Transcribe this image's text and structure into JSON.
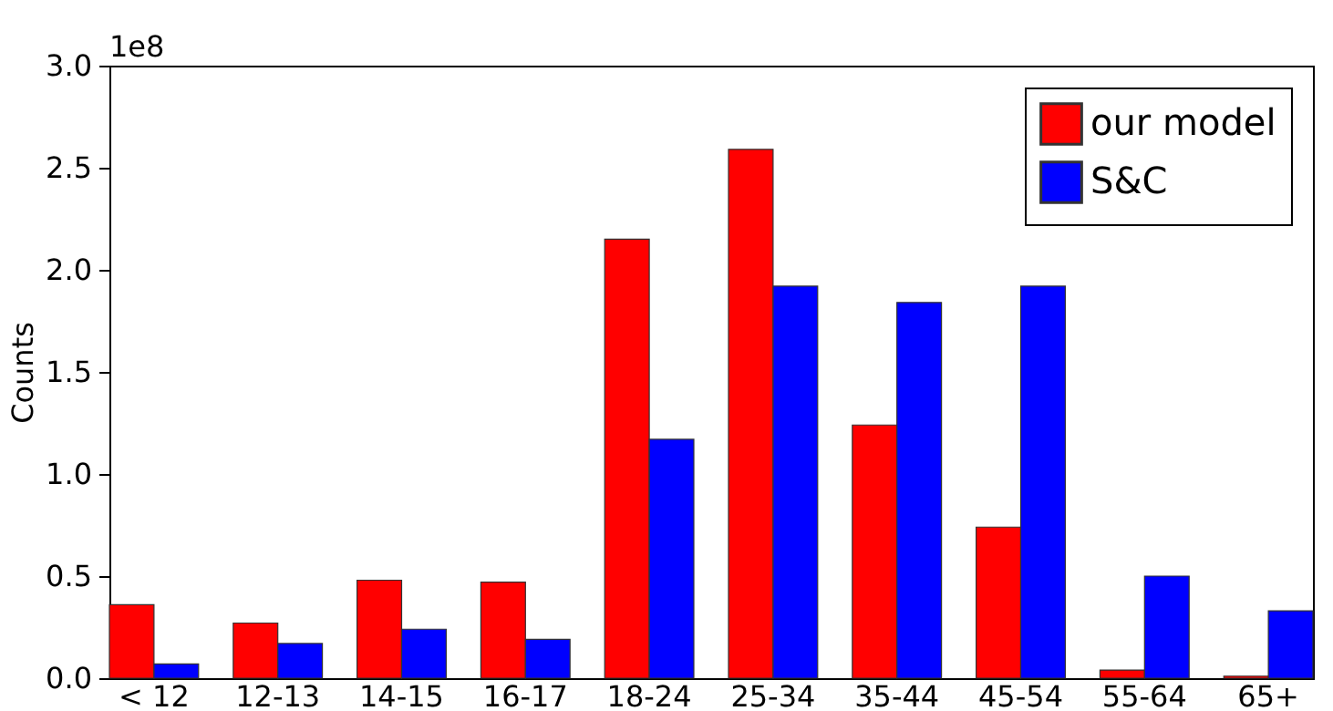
{
  "chart_data": {
    "type": "bar",
    "ylabel": "Counts",
    "categories": [
      "< 12",
      "12-13",
      "14-15",
      "16-17",
      "18-24",
      "25-34",
      "35-44",
      "45-54",
      "55-64",
      "65+"
    ],
    "series": [
      {
        "name": "our model",
        "color": "#ff0000",
        "values": [
          0.36,
          0.27,
          0.48,
          0.47,
          2.15,
          2.59,
          1.24,
          0.74,
          0.04,
          0.01
        ]
      },
      {
        "name": "S&C",
        "color": "#0000ff",
        "values": [
          0.07,
          0.17,
          0.24,
          0.19,
          1.17,
          1.92,
          1.84,
          1.92,
          0.5,
          0.33
        ]
      }
    ],
    "ylim": [
      0,
      3
    ],
    "yticks": [
      {
        "value": 0,
        "label": "0.0"
      },
      0.5,
      {
        "value": 1,
        "label": "1.0"
      },
      1.5,
      {
        "value": 2,
        "label": "2.0"
      },
      2.5,
      {
        "value": 3,
        "label": "3.0"
      }
    ],
    "annotations": [
      "1e8"
    ],
    "grid": false,
    "legend": "top right"
  }
}
